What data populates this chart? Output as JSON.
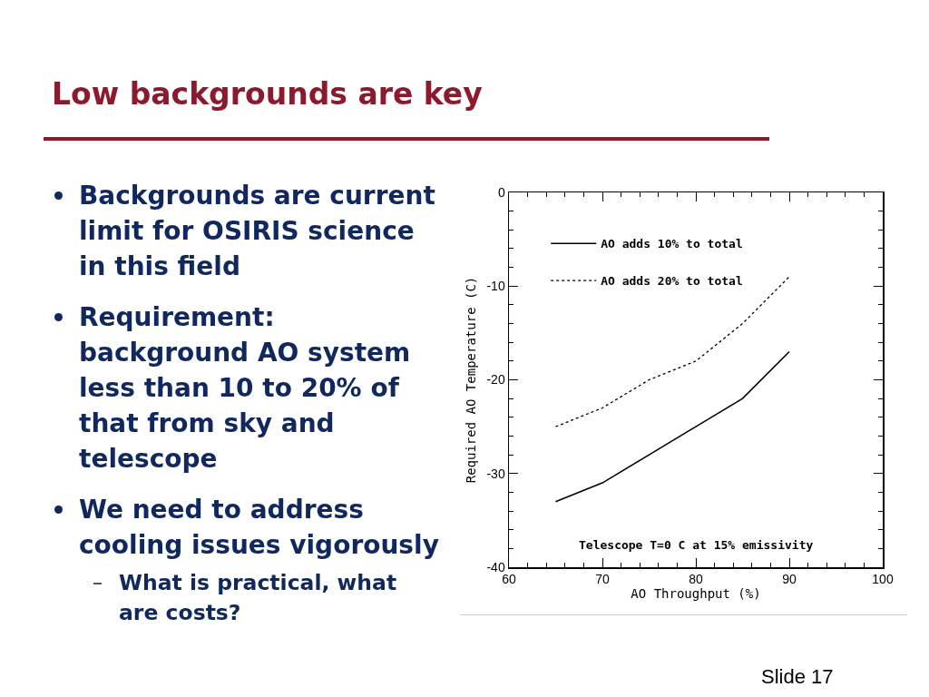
{
  "chart_data": {
    "type": "line",
    "title": "Low backgrounds are key",
    "xlabel": "AO Throughput (%)",
    "ylabel": "Required AO Temperature (C)",
    "x": [
      65,
      70,
      75,
      80,
      85,
      90
    ],
    "series": [
      {
        "name": "AO adds 10% to total",
        "color": "#000000",
        "line_style": "solid",
        "values": [
          -33,
          -31,
          -28,
          -25,
          -22,
          -17
        ]
      },
      {
        "name": "AO adds 20% to total",
        "color": "#000000",
        "line_style": "dotted",
        "values": [
          -25,
          -23,
          -20,
          -18,
          -14,
          -9
        ]
      }
    ],
    "xlim": [
      60,
      100
    ],
    "ylim": [
      -40,
      0
    ],
    "xticks": [
      60,
      {
        "value": 62,
        "label": null
      },
      {
        "value": 64,
        "label": null
      },
      {
        "value": 66,
        "label": null
      },
      {
        "value": 68,
        "label": null
      },
      70,
      {
        "value": 72,
        "label": null
      },
      {
        "value": 74,
        "label": null
      },
      {
        "value": 76,
        "label": null
      },
      {
        "value": 78,
        "label": null
      },
      80,
      {
        "value": 82,
        "label": null
      },
      {
        "value": 84,
        "label": null
      },
      {
        "value": 86,
        "label": null
      },
      {
        "value": 88,
        "label": null
      },
      90,
      {
        "value": 92,
        "label": null
      },
      {
        "value": 94,
        "label": null
      },
      {
        "value": 96,
        "label": null
      },
      {
        "value": 98,
        "label": null
      },
      100
    ],
    "yticks": [
      -40,
      {
        "value": -38,
        "label": null
      },
      {
        "value": -36,
        "label": null
      },
      {
        "value": -34,
        "label": null
      },
      {
        "value": -32,
        "label": null
      },
      -30,
      {
        "value": -28,
        "label": null
      },
      {
        "value": -26,
        "label": null
      },
      {
        "value": -24,
        "label": null
      },
      {
        "value": -22,
        "label": null
      },
      -20,
      {
        "value": -18,
        "label": null
      },
      {
        "value": -16,
        "label": null
      },
      {
        "value": -14,
        "label": null
      },
      {
        "value": -12,
        "label": null
      },
      -10,
      {
        "value": -8,
        "label": null
      },
      {
        "value": -6,
        "label": null
      },
      {
        "value": -4,
        "label": null
      },
      {
        "value": -2,
        "label": null
      },
      0
    ],
    "legend": "top left",
    "annotations": [
      "Backgrounds are current limit for OSIRIS science in this field",
      "Requirement: background AO system less than 10 to 20% of that from sky and telescope",
      "We need to address cooling issues vigorously",
      "What is practical, what are costs?",
      "Telescope T=0 C at 15% emissivity",
      "Slide 17"
    ]
  }
}
